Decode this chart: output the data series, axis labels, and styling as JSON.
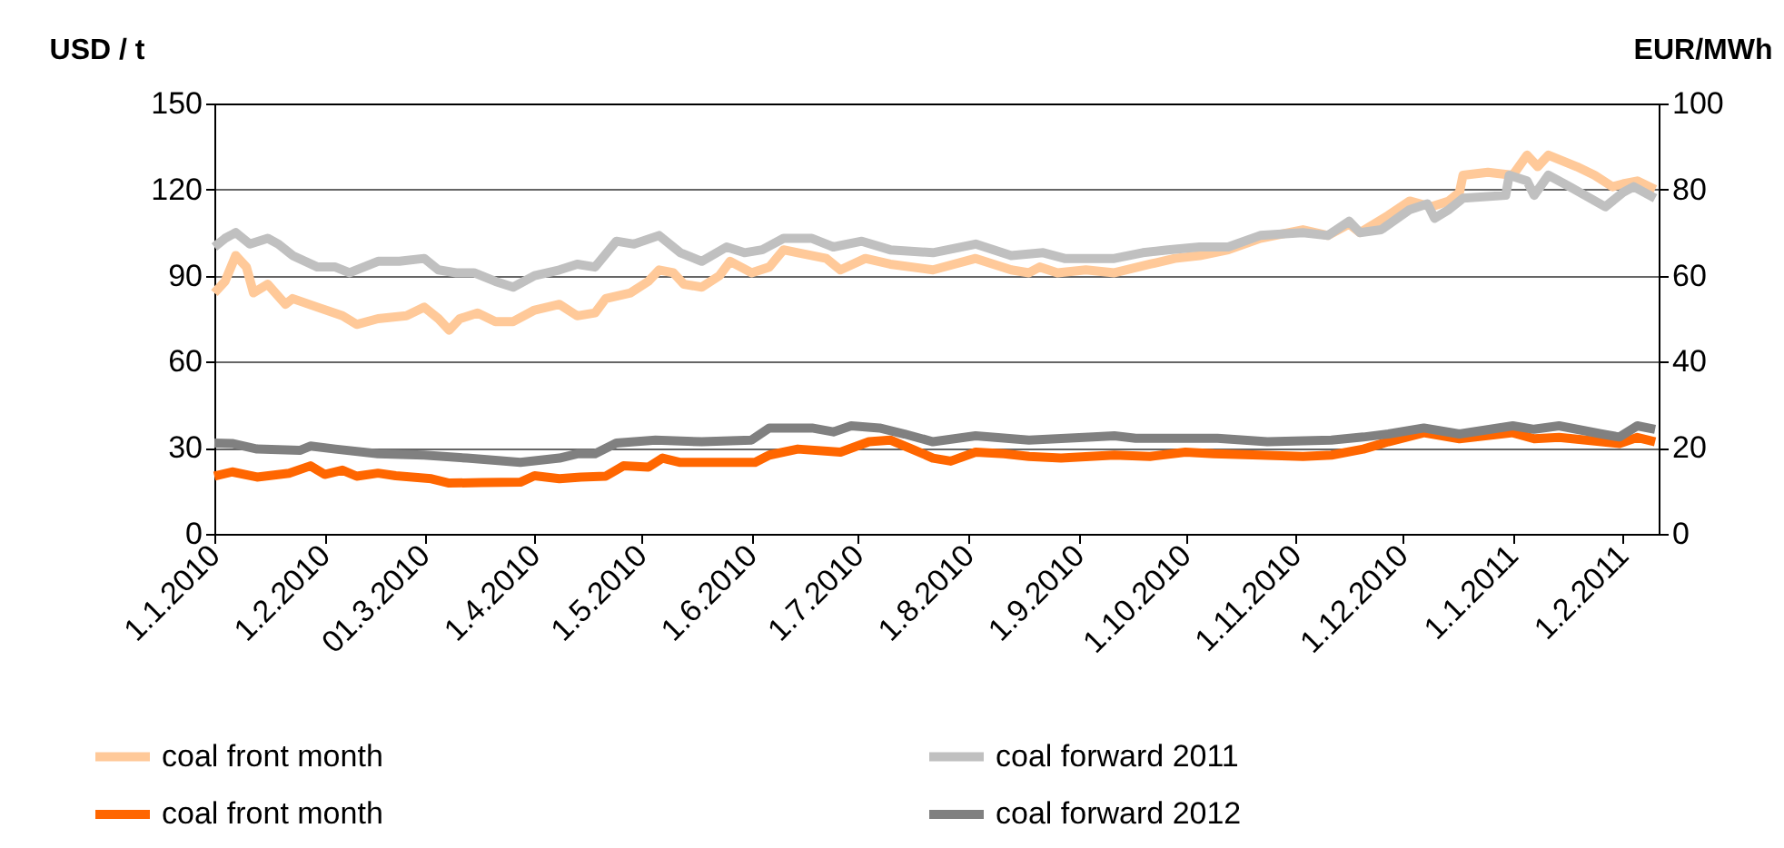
{
  "chart_data": {
    "type": "line",
    "ylabel": "USD / t",
    "y2label": "EUR/MWh",
    "xlim": [
      "2010-01-01",
      "2011-02-11"
    ],
    "xticks": [
      {
        "value": "2010-01-01",
        "label": "1.1.2010"
      },
      {
        "value": "2010-02-01",
        "label": "1.2.2010"
      },
      {
        "value": "2010-03-01",
        "label": "01.3.2010"
      },
      {
        "value": "2010-04-01",
        "label": "1.4.2010"
      },
      {
        "value": "2010-05-01",
        "label": "1.5.2010"
      },
      {
        "value": "2010-06-01",
        "label": "1.6.2010"
      },
      {
        "value": "2010-07-01",
        "label": "1.7.2010"
      },
      {
        "value": "2010-08-01",
        "label": "1.8.2010"
      },
      {
        "value": "2010-09-01",
        "label": "1.9.2010"
      },
      {
        "value": "2010-10-01",
        "label": "1.10.2010"
      },
      {
        "value": "2010-11-01",
        "label": "1.11.2010"
      },
      {
        "value": "2010-12-01",
        "label": "1.12.2010"
      },
      {
        "value": "2011-01-01",
        "label": "1.1.2011"
      },
      {
        "value": "2011-02-01",
        "label": "1.2.2011"
      }
    ],
    "ylim": [
      0,
      150
    ],
    "yticks": [
      0,
      30,
      60,
      90,
      120,
      150
    ],
    "y2lim": [
      0,
      100
    ],
    "y2ticks": [
      0,
      20,
      40,
      60,
      80,
      100
    ],
    "grid": "y",
    "legend": "bottom",
    "line_style": "solid",
    "marker": "none",
    "series": [
      {
        "name": "coal front month",
        "color": "#ffc999",
        "x": [
          "2010-01-01",
          "2010-01-04",
          "2010-01-07",
          "2010-01-10",
          "2010-01-12",
          "2010-01-16",
          "2010-01-21",
          "2010-01-23",
          "2010-01-30",
          "2010-02-06",
          "2010-02-10",
          "2010-02-16",
          "2010-02-24",
          "2010-03-01",
          "2010-03-05",
          "2010-03-08",
          "2010-03-11",
          "2010-03-16",
          "2010-03-21",
          "2010-03-26",
          "2010-04-01",
          "2010-04-08",
          "2010-04-13",
          "2010-04-18",
          "2010-04-21",
          "2010-04-28",
          "2010-05-03",
          "2010-05-06",
          "2010-05-10",
          "2010-05-13",
          "2010-05-18",
          "2010-05-23",
          "2010-05-26",
          "2010-06-01",
          "2010-06-06",
          "2010-06-10",
          "2010-06-14",
          "2010-06-22",
          "2010-06-26",
          "2010-07-03",
          "2010-07-10",
          "2010-07-22",
          "2010-08-03",
          "2010-08-13",
          "2010-08-18",
          "2010-08-21",
          "2010-08-26",
          "2010-09-03",
          "2010-09-11",
          "2010-09-21",
          "2010-09-28",
          "2010-10-05",
          "2010-10-13",
          "2010-10-22",
          "2010-11-03",
          "2010-11-10",
          "2010-11-16",
          "2010-11-19",
          "2010-11-23",
          "2010-11-27",
          "2010-12-03",
          "2010-12-09",
          "2010-12-14",
          "2010-12-17",
          "2010-12-18",
          "2010-12-25",
          "2011-01-01",
          "2011-01-05",
          "2011-01-08",
          "2011-01-11",
          "2011-01-19",
          "2011-01-24",
          "2011-01-29",
          "2011-02-01",
          "2011-02-05",
          "2011-02-10"
        ],
        "values": [
          84,
          88,
          97,
          93,
          84,
          87,
          80,
          82,
          79,
          76,
          73,
          75,
          76,
          79,
          75,
          71,
          75,
          77,
          74,
          74,
          78,
          80,
          76,
          77,
          82,
          84,
          88,
          92,
          91,
          87,
          86,
          90,
          95,
          91,
          93,
          99,
          98,
          96,
          92,
          96,
          94,
          92,
          96,
          92,
          91,
          93,
          91,
          92,
          91,
          94,
          96,
          97,
          99,
          103,
          106,
          104,
          108,
          105,
          108,
          111,
          116,
          114,
          116,
          119,
          125,
          126,
          125,
          132,
          128,
          132,
          128,
          125,
          121,
          122,
          123,
          120
        ]
      },
      {
        "name": "coal forward 2011",
        "color": "#c0c0c0",
        "x": [
          "2010-01-01",
          "2010-01-04",
          "2010-01-07",
          "2010-01-11",
          "2010-01-16",
          "2010-01-19",
          "2010-01-23",
          "2010-01-30",
          "2010-02-04",
          "2010-02-08",
          "2010-02-16",
          "2010-02-22",
          "2010-03-01",
          "2010-03-05",
          "2010-03-10",
          "2010-03-15",
          "2010-03-21",
          "2010-03-26",
          "2010-04-01",
          "2010-04-08",
          "2010-04-13",
          "2010-04-18",
          "2010-04-24",
          "2010-04-29",
          "2010-05-06",
          "2010-05-12",
          "2010-05-18",
          "2010-05-25",
          "2010-05-30",
          "2010-06-04",
          "2010-06-10",
          "2010-06-18",
          "2010-06-24",
          "2010-07-02",
          "2010-07-10",
          "2010-07-22",
          "2010-08-03",
          "2010-08-13",
          "2010-08-22",
          "2010-08-28",
          "2010-09-11",
          "2010-09-19",
          "2010-09-26",
          "2010-10-05",
          "2010-10-13",
          "2010-10-22",
          "2010-11-03",
          "2010-11-10",
          "2010-11-16",
          "2010-11-19",
          "2010-11-25",
          "2010-12-03",
          "2010-12-08",
          "2010-12-10",
          "2010-12-14",
          "2010-12-18",
          "2010-12-30",
          "2010-12-31",
          "2011-01-05",
          "2011-01-07",
          "2011-01-11",
          "2011-01-17",
          "2011-01-27",
          "2011-02-01",
          "2011-02-04",
          "2011-02-10"
        ],
        "values": [
          100,
          103,
          105,
          101,
          103,
          101,
          97,
          93,
          93,
          91,
          95,
          95,
          96,
          92,
          91,
          91,
          88,
          86,
          90,
          92,
          94,
          93,
          102,
          101,
          104,
          98,
          95,
          100,
          98,
          99,
          103,
          103,
          100,
          102,
          99,
          98,
          101,
          97,
          98,
          96,
          96,
          98,
          99,
          100,
          100,
          104,
          105,
          104,
          109,
          105,
          106,
          113,
          115,
          110,
          113,
          117,
          118,
          125,
          123,
          118,
          125,
          121,
          114,
          119,
          121,
          117
        ]
      },
      {
        "name": "coal front month",
        "color": "#ff6600",
        "axis": "y2",
        "x": [
          "2010-01-01",
          "2010-01-06",
          "2010-01-13",
          "2010-01-22",
          "2010-01-28",
          "2010-02-01",
          "2010-02-06",
          "2010-02-10",
          "2010-02-16",
          "2010-02-21",
          "2010-03-03",
          "2010-03-08",
          "2010-03-17",
          "2010-03-28",
          "2010-04-01",
          "2010-04-08",
          "2010-04-14",
          "2010-04-21",
          "2010-04-26",
          "2010-05-03",
          "2010-05-07",
          "2010-05-12",
          "2010-05-18",
          "2010-06-02",
          "2010-06-06",
          "2010-06-14",
          "2010-06-26",
          "2010-07-04",
          "2010-07-10",
          "2010-07-17",
          "2010-07-22",
          "2010-07-27",
          "2010-08-03",
          "2010-08-11",
          "2010-08-18",
          "2010-08-27",
          "2010-09-11",
          "2010-09-21",
          "2010-10-01",
          "2010-10-09",
          "2010-10-22",
          "2010-11-03",
          "2010-11-11",
          "2010-11-20",
          "2010-11-27",
          "2010-12-07",
          "2010-12-17",
          "2011-01-01",
          "2011-01-07",
          "2011-01-14",
          "2011-01-26",
          "2011-01-31",
          "2011-02-05",
          "2011-02-10"
        ],
        "values": [
          13.4,
          14.4,
          13.2,
          14.1,
          15.8,
          13.8,
          14.8,
          13.4,
          14.1,
          13.5,
          12.8,
          11.8,
          11.9,
          12,
          13.5,
          12.8,
          13.2,
          13.4,
          15.8,
          15.5,
          17.6,
          16.6,
          16.6,
          16.6,
          18.3,
          19.7,
          19,
          21.4,
          21.8,
          19.4,
          17.6,
          16.9,
          19,
          18.6,
          18,
          17.6,
          18.3,
          18,
          19,
          18.6,
          18.3,
          18,
          18.3,
          19.7,
          21.4,
          23.5,
          22.1,
          23.5,
          22.1,
          22.4,
          21.4,
          21,
          22.4,
          21.4
        ]
      },
      {
        "name": "coal forward 2012",
        "color": "#808080",
        "axis": "y2",
        "x": [
          "2010-01-01",
          "2010-01-06",
          "2010-01-13",
          "2010-01-25",
          "2010-01-28",
          "2010-02-04",
          "2010-02-16",
          "2010-03-01",
          "2010-03-13",
          "2010-03-21",
          "2010-03-28",
          "2010-04-08",
          "2010-04-13",
          "2010-04-18",
          "2010-04-24",
          "2010-05-05",
          "2010-05-18",
          "2010-06-01",
          "2010-06-06",
          "2010-06-18",
          "2010-06-24",
          "2010-06-29",
          "2010-07-07",
          "2010-07-14",
          "2010-07-22",
          "2010-08-03",
          "2010-08-18",
          "2010-09-05",
          "2010-09-11",
          "2010-09-17",
          "2010-10-04",
          "2010-10-10",
          "2010-10-24",
          "2010-11-11",
          "2010-11-20",
          "2010-11-27",
          "2010-12-07",
          "2010-12-17",
          "2011-01-01",
          "2011-01-07",
          "2011-01-14",
          "2011-01-26",
          "2011-01-31",
          "2011-02-05",
          "2011-02-10"
        ],
        "values": [
          21.1,
          21,
          19.7,
          19.4,
          20.4,
          19.7,
          18.6,
          18.3,
          17.6,
          17.1,
          16.6,
          17.6,
          18.6,
          18.6,
          21.1,
          21.8,
          21.4,
          21.8,
          24.6,
          24.6,
          23.7,
          25.1,
          24.6,
          23.2,
          21.4,
          22.8,
          21.8,
          22.5,
          22.8,
          22.2,
          22.2,
          22.2,
          21.4,
          21.8,
          22.5,
          23.2,
          24.6,
          23.2,
          25.1,
          24.3,
          25.1,
          23.2,
          22.5,
          25.1,
          24.3
        ]
      }
    ]
  }
}
